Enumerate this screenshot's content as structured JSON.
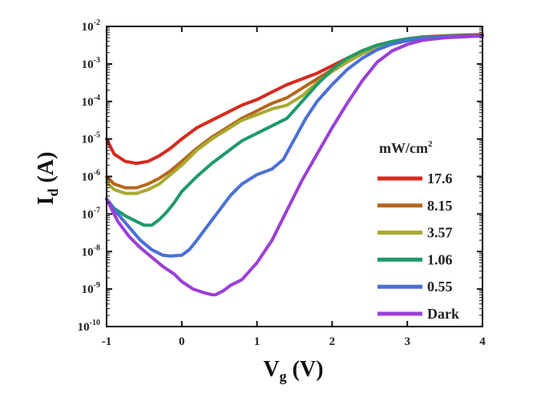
{
  "chart_data": {
    "type": "line",
    "title": "",
    "xlabel": "V",
    "xlabel_sub": "g",
    "xlabel_unit": " (V)",
    "ylabel": "I",
    "ylabel_sub": "d",
    "ylabel_unit": " (A)",
    "xlim": [
      -1,
      4
    ],
    "ylim_log10": [
      -10,
      -2
    ],
    "yscale": "log",
    "xticks": [
      -1,
      0,
      1,
      2,
      3,
      4
    ],
    "yticks": [
      {
        "exp": -10,
        "label_base": "10",
        "label_exp": "-10"
      },
      {
        "exp": -9,
        "label_base": "10",
        "label_exp": "-9"
      },
      {
        "exp": -8,
        "label_base": "10",
        "label_exp": "-8"
      },
      {
        "exp": -7,
        "label_base": "10",
        "label_exp": "-7"
      },
      {
        "exp": -6,
        "label_base": "10",
        "label_exp": "-6"
      },
      {
        "exp": -5,
        "label_base": "10",
        "label_exp": "-5"
      },
      {
        "exp": -4,
        "label_base": "10",
        "label_exp": "-4"
      },
      {
        "exp": -3,
        "label_base": "10",
        "label_exp": "-3"
      },
      {
        "exp": -2,
        "label_base": "10",
        "label_exp": "-2"
      }
    ],
    "legend_title": "mW/cm",
    "legend_title_sup": "2",
    "legend_position": "right",
    "grid": false,
    "series": [
      {
        "name": "17.6",
        "color": "#d42a1e",
        "x": [
          -1.0,
          -0.9,
          -0.75,
          -0.6,
          -0.45,
          -0.3,
          -0.15,
          0.0,
          0.2,
          0.4,
          0.6,
          0.8,
          1.0,
          1.2,
          1.4,
          1.6,
          1.8,
          2.0,
          2.2,
          2.4,
          2.6,
          2.8,
          3.0,
          3.2,
          3.5,
          3.8,
          4.0
        ],
        "log10y": [
          -5.0,
          -5.4,
          -5.6,
          -5.65,
          -5.6,
          -5.45,
          -5.25,
          -5.0,
          -4.7,
          -4.5,
          -4.3,
          -4.1,
          -3.95,
          -3.75,
          -3.55,
          -3.4,
          -3.25,
          -3.05,
          -2.85,
          -2.65,
          -2.5,
          -2.4,
          -2.33,
          -2.28,
          -2.25,
          -2.23,
          -2.22
        ]
      },
      {
        "name": "8.15",
        "color": "#b5651d",
        "x": [
          -1.0,
          -0.9,
          -0.75,
          -0.6,
          -0.45,
          -0.3,
          -0.15,
          0.0,
          0.2,
          0.4,
          0.6,
          0.8,
          1.0,
          1.2,
          1.4,
          1.6,
          1.8,
          2.0,
          2.2,
          2.4,
          2.6,
          2.8,
          3.0,
          3.2,
          3.5,
          3.8,
          4.0
        ],
        "log10y": [
          -6.0,
          -6.2,
          -6.3,
          -6.3,
          -6.2,
          -6.05,
          -5.85,
          -5.6,
          -5.25,
          -4.95,
          -4.7,
          -4.45,
          -4.25,
          -4.05,
          -3.9,
          -3.65,
          -3.4,
          -3.15,
          -2.9,
          -2.7,
          -2.55,
          -2.45,
          -2.37,
          -2.31,
          -2.27,
          -2.25,
          -2.24
        ]
      },
      {
        "name": "3.57",
        "color": "#a9a932",
        "x": [
          -1.0,
          -0.9,
          -0.75,
          -0.6,
          -0.45,
          -0.3,
          -0.15,
          0.0,
          0.2,
          0.4,
          0.6,
          0.8,
          1.0,
          1.2,
          1.4,
          1.6,
          1.8,
          2.0,
          2.2,
          2.4,
          2.6,
          2.8,
          3.0,
          3.2,
          3.5,
          3.8,
          4.0
        ],
        "log10y": [
          -6.15,
          -6.35,
          -6.45,
          -6.45,
          -6.35,
          -6.2,
          -5.95,
          -5.7,
          -5.3,
          -5.0,
          -4.75,
          -4.5,
          -4.35,
          -4.2,
          -4.1,
          -3.85,
          -3.5,
          -3.2,
          -2.95,
          -2.73,
          -2.57,
          -2.46,
          -2.38,
          -2.32,
          -2.28,
          -2.26,
          -2.25
        ]
      },
      {
        "name": "1.06",
        "color": "#1f9a6a",
        "x": [
          -1.0,
          -0.9,
          -0.75,
          -0.6,
          -0.5,
          -0.4,
          -0.3,
          -0.2,
          -0.1,
          0.0,
          0.2,
          0.4,
          0.6,
          0.8,
          1.0,
          1.2,
          1.4,
          1.6,
          1.8,
          2.0,
          2.2,
          2.4,
          2.6,
          2.8,
          3.0,
          3.2,
          3.5,
          3.8,
          4.0
        ],
        "log10y": [
          -6.6,
          -6.85,
          -7.05,
          -7.2,
          -7.3,
          -7.3,
          -7.15,
          -6.95,
          -6.7,
          -6.4,
          -6.0,
          -5.65,
          -5.35,
          -5.05,
          -4.85,
          -4.65,
          -4.45,
          -4.0,
          -3.55,
          -3.15,
          -2.85,
          -2.65,
          -2.5,
          -2.4,
          -2.33,
          -2.29,
          -2.26,
          -2.25,
          -2.24
        ]
      },
      {
        "name": "0.55",
        "color": "#4a6fd6",
        "x": [
          -1.0,
          -0.85,
          -0.7,
          -0.55,
          -0.4,
          -0.25,
          -0.15,
          0.0,
          0.1,
          0.2,
          0.35,
          0.5,
          0.65,
          0.8,
          1.0,
          1.2,
          1.35,
          1.5,
          1.65,
          1.8,
          2.0,
          2.2,
          2.4,
          2.6,
          2.8,
          3.0,
          3.2,
          3.5,
          3.8,
          4.0
        ],
        "log10y": [
          -6.6,
          -7.0,
          -7.35,
          -7.7,
          -7.95,
          -8.1,
          -8.12,
          -8.1,
          -7.95,
          -7.7,
          -7.3,
          -6.9,
          -6.5,
          -6.2,
          -5.95,
          -5.8,
          -5.55,
          -5.0,
          -4.45,
          -4.0,
          -3.55,
          -3.15,
          -2.85,
          -2.62,
          -2.47,
          -2.38,
          -2.32,
          -2.28,
          -2.26,
          -2.25
        ]
      },
      {
        "name": "Dark",
        "color": "#9b3fd6",
        "x": [
          -1.0,
          -0.85,
          -0.7,
          -0.55,
          -0.4,
          -0.25,
          -0.1,
          0.0,
          0.15,
          0.3,
          0.4,
          0.45,
          0.55,
          0.65,
          0.8,
          1.0,
          1.2,
          1.4,
          1.6,
          1.8,
          2.0,
          2.2,
          2.4,
          2.6,
          2.8,
          3.0,
          3.2,
          3.5,
          3.8,
          4.0
        ],
        "log10y": [
          -6.6,
          -7.2,
          -7.6,
          -7.9,
          -8.15,
          -8.4,
          -8.6,
          -8.8,
          -9.0,
          -9.1,
          -9.15,
          -9.15,
          -9.05,
          -8.9,
          -8.75,
          -8.3,
          -7.7,
          -6.9,
          -6.1,
          -5.4,
          -4.7,
          -4.05,
          -3.45,
          -2.95,
          -2.65,
          -2.48,
          -2.37,
          -2.3,
          -2.27,
          -2.25
        ]
      }
    ]
  }
}
